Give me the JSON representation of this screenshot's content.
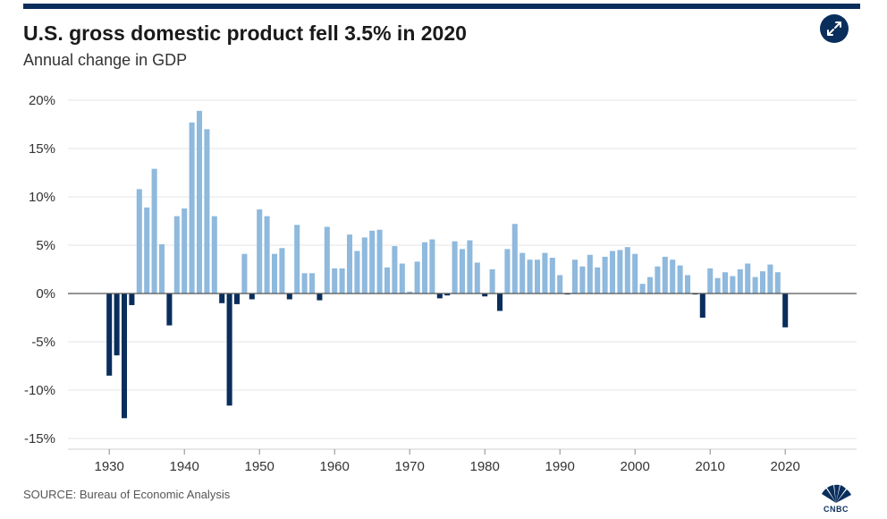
{
  "header": {
    "title": "U.S. gross domestic product fell 3.5% in 2020",
    "subtitle": "Annual change in GDP",
    "expand_icon": "expand-icon"
  },
  "footer": {
    "source": "SOURCE: Bureau of Economic Analysis",
    "logo_text": "CNBC"
  },
  "colors": {
    "positive": "#8fb9dd",
    "negative": "#0a2e5c",
    "grid": "#e6e6e6",
    "axis": "#555555"
  },
  "chart_data": {
    "type": "bar",
    "title": "U.S. gross domestic product fell 3.5% in 2020",
    "subtitle": "Annual change in GDP",
    "xlabel": "",
    "ylabel": "",
    "ylim": [
      -15,
      20
    ],
    "y_ticks": [
      20,
      15,
      10,
      5,
      0,
      -5,
      -10,
      -15
    ],
    "y_tick_labels": [
      "20%",
      "15%",
      "10%",
      "5%",
      "0%",
      "-5%",
      "-10%",
      "-15%"
    ],
    "x_ticks": [
      1930,
      1940,
      1950,
      1960,
      1970,
      1980,
      1990,
      2000,
      2010,
      2020
    ],
    "x_tick_labels": [
      "1930",
      "1940",
      "1950",
      "1960",
      "1970",
      "1980",
      "1990",
      "2000",
      "2010",
      "2020"
    ],
    "xlim": [
      1924.5,
      2029.5
    ],
    "grid": true,
    "years": [
      1930,
      1931,
      1932,
      1933,
      1934,
      1935,
      1936,
      1937,
      1938,
      1939,
      1940,
      1941,
      1942,
      1943,
      1944,
      1945,
      1946,
      1947,
      1948,
      1949,
      1950,
      1951,
      1952,
      1953,
      1954,
      1955,
      1956,
      1957,
      1958,
      1959,
      1960,
      1961,
      1962,
      1963,
      1964,
      1965,
      1966,
      1967,
      1968,
      1969,
      1970,
      1971,
      1972,
      1973,
      1974,
      1975,
      1976,
      1977,
      1978,
      1979,
      1980,
      1981,
      1982,
      1983,
      1984,
      1985,
      1986,
      1987,
      1988,
      1989,
      1990,
      1991,
      1992,
      1993,
      1994,
      1995,
      1996,
      1997,
      1998,
      1999,
      2000,
      2001,
      2002,
      2003,
      2004,
      2005,
      2006,
      2007,
      2008,
      2009,
      2010,
      2011,
      2012,
      2013,
      2014,
      2015,
      2016,
      2017,
      2018,
      2019,
      2020
    ],
    "values": [
      -8.5,
      -6.4,
      -12.9,
      -1.2,
      10.8,
      8.9,
      12.9,
      5.1,
      -3.3,
      8.0,
      8.8,
      17.7,
      18.9,
      17.0,
      8.0,
      -1.0,
      -11.6,
      -1.1,
      4.1,
      -0.6,
      8.7,
      8.0,
      4.1,
      4.7,
      -0.6,
      7.1,
      2.1,
      2.1,
      -0.7,
      6.9,
      2.6,
      2.6,
      6.1,
      4.4,
      5.8,
      6.5,
      6.6,
      2.7,
      4.9,
      3.1,
      0.2,
      3.3,
      5.3,
      5.6,
      -0.5,
      -0.2,
      5.4,
      4.6,
      5.5,
      3.2,
      -0.3,
      2.5,
      -1.8,
      4.6,
      7.2,
      4.2,
      3.5,
      3.5,
      4.2,
      3.7,
      1.9,
      -0.1,
      3.5,
      2.8,
      4.0,
      2.7,
      3.8,
      4.4,
      4.5,
      4.8,
      4.1,
      1.0,
      1.7,
      2.8,
      3.8,
      3.5,
      2.9,
      1.9,
      -0.1,
      -2.5,
      2.6,
      1.6,
      2.2,
      1.8,
      2.5,
      3.1,
      1.7,
      2.3,
      3.0,
      2.2,
      -3.5
    ]
  }
}
